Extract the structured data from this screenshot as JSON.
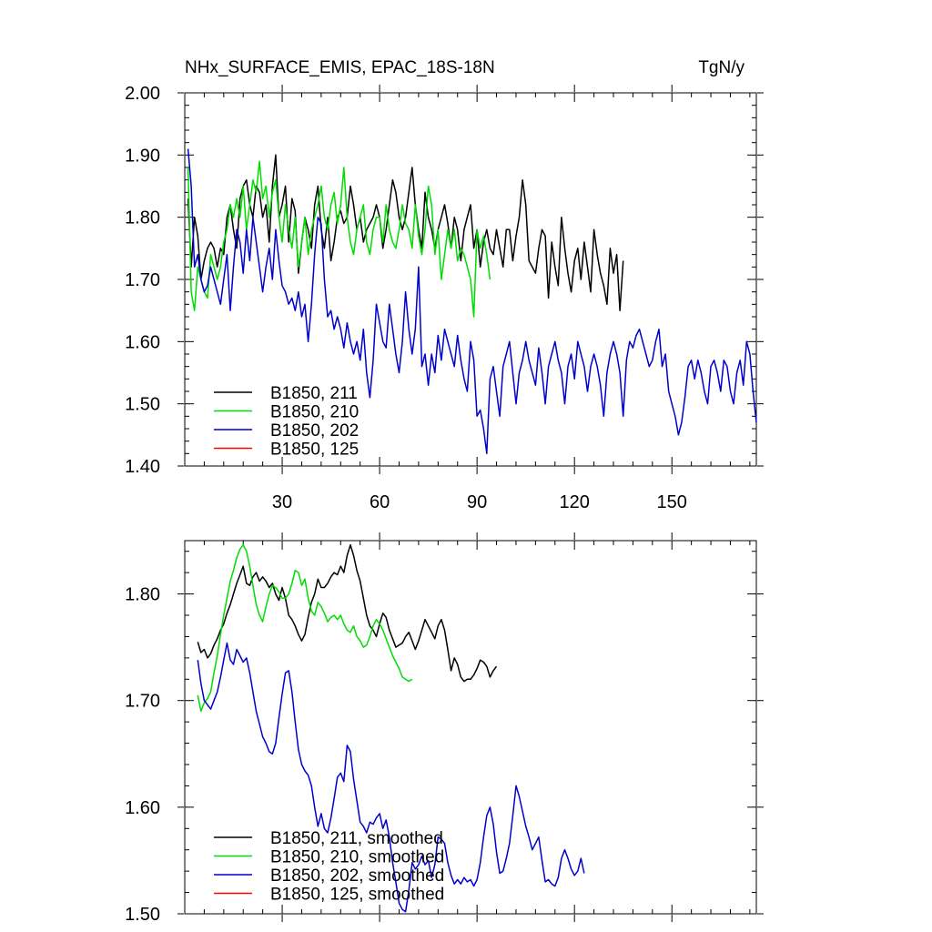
{
  "figure": {
    "left_title": "NHx_SURFACE_EMIS, EPAC_18S-18N",
    "right_title": "TgN/y"
  },
  "chart_data": [
    {
      "type": "line",
      "xlim": [
        0,
        176
      ],
      "ylim": [
        1.4,
        2.0
      ],
      "x_ticks": [
        30,
        60,
        90,
        120,
        150
      ],
      "x_tick_labels": [
        "30",
        "60",
        "90",
        "120",
        "150"
      ],
      "y_ticks": [
        1.4,
        1.5,
        1.6,
        1.7,
        1.8,
        1.9,
        2.0
      ],
      "y_tick_labels": [
        "1.40",
        "1.50",
        "1.60",
        "1.70",
        "1.80",
        "1.90",
        "2.00"
      ],
      "grid": false,
      "legend_position": "bottom-left",
      "series": [
        {
          "name": "B1850, 211",
          "color": "#000000",
          "x_start": 1,
          "values": [
            1.83,
            1.72,
            1.8,
            1.77,
            1.7,
            1.73,
            1.75,
            1.76,
            1.75,
            1.72,
            1.75,
            1.74,
            1.8,
            1.82,
            1.78,
            1.75,
            1.83,
            1.85,
            1.86,
            1.82,
            1.8,
            1.85,
            1.84,
            1.8,
            1.82,
            1.76,
            1.85,
            1.9,
            1.8,
            1.82,
            1.85,
            1.76,
            1.83,
            1.81,
            1.71,
            1.76,
            1.8,
            1.78,
            1.75,
            1.82,
            1.85,
            1.78,
            1.75,
            1.8,
            1.73,
            1.76,
            1.8,
            1.81,
            1.79,
            1.8,
            1.85,
            1.82,
            1.78,
            1.8,
            1.76,
            1.78,
            1.79,
            1.8,
            1.82,
            1.8,
            1.75,
            1.78,
            1.82,
            1.86,
            1.84,
            1.8,
            1.78,
            1.8,
            1.84,
            1.88,
            1.82,
            1.78,
            1.75,
            1.84,
            1.8,
            1.78,
            1.75,
            1.78,
            1.8,
            1.82,
            1.79,
            1.75,
            1.8,
            1.78,
            1.73,
            1.78,
            1.8,
            1.82,
            1.75,
            1.78,
            1.72,
            1.76,
            1.78,
            1.75,
            1.74,
            1.78,
            1.75,
            1.72,
            1.78,
            1.78,
            1.73,
            1.77,
            1.8,
            1.86,
            1.82,
            1.73,
            1.72,
            1.71,
            1.75,
            1.78,
            1.77,
            1.67,
            1.76,
            1.72,
            1.69,
            1.8,
            1.75,
            1.71,
            1.68,
            1.73,
            1.75,
            1.7,
            1.76,
            1.72,
            1.68,
            1.78,
            1.74,
            1.71,
            1.69,
            1.66,
            1.75,
            1.71,
            1.74,
            1.65,
            1.73
          ]
        },
        {
          "name": "B1850, 210",
          "color": "#00dd00",
          "x_start": 1,
          "values": [
            1.88,
            1.68,
            1.65,
            1.72,
            1.7,
            1.68,
            1.67,
            1.74,
            1.72,
            1.7,
            1.72,
            1.76,
            1.78,
            1.82,
            1.8,
            1.83,
            1.8,
            1.85,
            1.78,
            1.82,
            1.86,
            1.84,
            1.89,
            1.83,
            1.85,
            1.8,
            1.84,
            1.86,
            1.8,
            1.76,
            1.82,
            1.78,
            1.75,
            1.8,
            1.72,
            1.76,
            1.8,
            1.74,
            1.78,
            1.8,
            1.82,
            1.85,
            1.8,
            1.78,
            1.82,
            1.84,
            1.79,
            1.82,
            1.88,
            1.8,
            1.76,
            1.74,
            1.78,
            1.8,
            1.82,
            1.76,
            1.74,
            1.78,
            1.8,
            1.8,
            1.76,
            1.82,
            1.78,
            1.76,
            1.75,
            1.78,
            1.82,
            1.79,
            1.78,
            1.75,
            1.82,
            1.77,
            1.74,
            1.78,
            1.85,
            1.82,
            1.74,
            1.78,
            1.7,
            1.74,
            1.78,
            1.75,
            1.78,
            1.73,
            1.75,
            1.74,
            1.72,
            1.7,
            1.64,
            1.78,
            1.75,
            1.77,
            1.74,
            1.7
          ]
        },
        {
          "name": "B1850, 202",
          "color": "#0000cc",
          "x_start": 1,
          "values": [
            1.91,
            1.85,
            1.72,
            1.74,
            1.7,
            1.68,
            1.69,
            1.72,
            1.7,
            1.68,
            1.66,
            1.7,
            1.74,
            1.65,
            1.72,
            1.78,
            1.76,
            1.71,
            1.78,
            1.73,
            1.8,
            1.76,
            1.72,
            1.68,
            1.72,
            1.75,
            1.7,
            1.78,
            1.73,
            1.69,
            1.68,
            1.66,
            1.67,
            1.65,
            1.68,
            1.64,
            1.66,
            1.6,
            1.66,
            1.74,
            1.8,
            1.79,
            1.7,
            1.64,
            1.65,
            1.62,
            1.64,
            1.62,
            1.59,
            1.63,
            1.6,
            1.58,
            1.6,
            1.57,
            1.62,
            1.55,
            1.51,
            1.57,
            1.66,
            1.63,
            1.6,
            1.59,
            1.66,
            1.62,
            1.58,
            1.55,
            1.6,
            1.68,
            1.62,
            1.58,
            1.62,
            1.72,
            1.56,
            1.58,
            1.53,
            1.58,
            1.55,
            1.61,
            1.57,
            1.62,
            1.6,
            1.58,
            1.56,
            1.61,
            1.57,
            1.54,
            1.52,
            1.6,
            1.57,
            1.48,
            1.49,
            1.46,
            1.42,
            1.54,
            1.56,
            1.52,
            1.48,
            1.56,
            1.58,
            1.6,
            1.55,
            1.5,
            1.55,
            1.57,
            1.6,
            1.57,
            1.55,
            1.53,
            1.59,
            1.55,
            1.5,
            1.56,
            1.58,
            1.6,
            1.57,
            1.55,
            1.5,
            1.56,
            1.58,
            1.54,
            1.6,
            1.58,
            1.56,
            1.52,
            1.56,
            1.58,
            1.56,
            1.53,
            1.48,
            1.55,
            1.58,
            1.6,
            1.58,
            1.55,
            1.48,
            1.57,
            1.6,
            1.59,
            1.61,
            1.62,
            1.6,
            1.58,
            1.56,
            1.57,
            1.6,
            1.62,
            1.56,
            1.58,
            1.52,
            1.5,
            1.48,
            1.45,
            1.47,
            1.51,
            1.56,
            1.57,
            1.54,
            1.57,
            1.55,
            1.52,
            1.5,
            1.56,
            1.57,
            1.55,
            1.52,
            1.57,
            1.56,
            1.52,
            1.5,
            1.55,
            1.57,
            1.53,
            1.6,
            1.58,
            1.52,
            1.47
          ]
        },
        {
          "name": "B1850, 125",
          "color": "#ff0000",
          "x_start": 1,
          "values": []
        }
      ]
    },
    {
      "type": "line",
      "xlim": [
        0,
        176
      ],
      "ylim": [
        1.5,
        1.85
      ],
      "x_ticks": [
        30,
        60,
        90,
        120,
        150
      ],
      "x_tick_labels": [
        "",
        "",
        "",
        "",
        ""
      ],
      "y_ticks": [
        1.5,
        1.6,
        1.7,
        1.8
      ],
      "y_tick_labels": [
        "1.50",
        "1.60",
        "1.70",
        "1.80"
      ],
      "grid": false,
      "legend_position": "bottom-left",
      "series": [
        {
          "name": "B1850, 211, smoothed",
          "color": "#000000",
          "x_start": 4,
          "values": [
            1.755,
            1.745,
            1.748,
            1.74,
            1.744,
            1.752,
            1.758,
            1.766,
            1.772,
            1.782,
            1.79,
            1.8,
            1.81,
            1.818,
            1.826,
            1.81,
            1.808,
            1.816,
            1.82,
            1.812,
            1.816,
            1.812,
            1.806,
            1.81,
            1.8,
            1.794,
            1.806,
            1.796,
            1.78,
            1.776,
            1.77,
            1.762,
            1.756,
            1.762,
            1.778,
            1.792,
            1.8,
            1.814,
            1.806,
            1.806,
            1.81,
            1.816,
            1.82,
            1.818,
            1.826,
            1.82,
            1.836,
            1.846,
            1.836,
            1.822,
            1.812,
            1.796,
            1.78,
            1.77,
            1.766,
            1.76,
            1.772,
            1.782,
            1.778,
            1.766,
            1.758,
            1.75,
            1.752,
            1.754,
            1.76,
            1.764,
            1.756,
            1.748,
            1.756,
            1.766,
            1.776,
            1.77,
            1.764,
            1.758,
            1.77,
            1.776,
            1.766,
            1.748,
            1.728,
            1.74,
            1.734,
            1.722,
            1.718,
            1.72,
            1.72,
            1.724,
            1.73,
            1.738,
            1.736,
            1.732,
            1.722,
            1.728,
            1.732
          ]
        },
        {
          "name": "B1850, 210, smoothed",
          "color": "#00dd00",
          "x_start": 4,
          "values": [
            1.705,
            1.69,
            1.698,
            1.702,
            1.708,
            1.726,
            1.742,
            1.762,
            1.78,
            1.796,
            1.812,
            1.822,
            1.834,
            1.842,
            1.846,
            1.84,
            1.826,
            1.808,
            1.79,
            1.78,
            1.774,
            1.788,
            1.8,
            1.808,
            1.806,
            1.802,
            1.796,
            1.796,
            1.8,
            1.81,
            1.822,
            1.82,
            1.808,
            1.814,
            1.796,
            1.784,
            1.78,
            1.792,
            1.788,
            1.782,
            1.774,
            1.778,
            1.78,
            1.776,
            1.78,
            1.772,
            1.766,
            1.764,
            1.77,
            1.76,
            1.756,
            1.75,
            1.752,
            1.76,
            1.77,
            1.776,
            1.772,
            1.766,
            1.758,
            1.75,
            1.742,
            1.736,
            1.73,
            1.722,
            1.72,
            1.718,
            1.72
          ]
        },
        {
          "name": "B1850, 202, smoothed",
          "color": "#0000cc",
          "x_start": 4,
          "values": [
            1.738,
            1.716,
            1.7,
            1.696,
            1.692,
            1.7,
            1.708,
            1.722,
            1.738,
            1.754,
            1.738,
            1.734,
            1.748,
            1.742,
            1.736,
            1.74,
            1.726,
            1.708,
            1.69,
            1.678,
            1.666,
            1.66,
            1.652,
            1.65,
            1.66,
            1.684,
            1.706,
            1.726,
            1.728,
            1.708,
            1.68,
            1.654,
            1.64,
            1.634,
            1.63,
            1.62,
            1.6,
            1.582,
            1.594,
            1.58,
            1.576,
            1.59,
            1.608,
            1.628,
            1.632,
            1.624,
            1.658,
            1.652,
            1.626,
            1.606,
            1.586,
            1.582,
            1.576,
            1.586,
            1.584,
            1.59,
            1.594,
            1.58,
            1.588,
            1.572,
            1.548,
            1.53,
            1.51,
            1.504,
            1.502,
            1.522,
            1.548,
            1.542,
            1.546,
            1.554,
            1.546,
            1.55,
            1.534,
            1.546,
            1.572,
            1.57,
            1.566,
            1.548,
            1.536,
            1.528,
            1.532,
            1.528,
            1.534,
            1.53,
            1.532,
            1.526,
            1.532,
            1.548,
            1.572,
            1.592,
            1.6,
            1.584,
            1.558,
            1.538,
            1.54,
            1.552,
            1.566,
            1.592,
            1.62,
            1.61,
            1.596,
            1.582,
            1.572,
            1.56,
            1.566,
            1.572,
            1.55,
            1.53,
            1.532,
            1.528,
            1.526,
            1.534,
            1.552,
            1.56,
            1.552,
            1.542,
            1.536,
            1.54,
            1.552,
            1.538
          ]
        },
        {
          "name": "B1850, 125, smoothed",
          "color": "#ff0000",
          "x_start": 4,
          "values": []
        }
      ]
    }
  ]
}
